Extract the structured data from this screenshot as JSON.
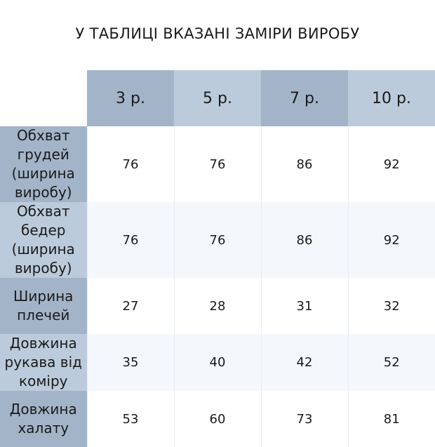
{
  "title": "У ТАБЛИЦІ ВКАЗАНІ ЗАМІРИ ВИРОБУ",
  "colors": {
    "header_dark": "#a3b4c9",
    "header_light": "#bccbdb",
    "row_alt": "#f4f8fc"
  },
  "columns": [
    "3 р.",
    "5 р.",
    "7 р.",
    "10 р."
  ],
  "rows": [
    {
      "label": "Обхват грудей (ширина виробу)",
      "values": [
        "76",
        "76",
        "86",
        "92"
      ]
    },
    {
      "label": "Обхват бедер (ширина виробу)",
      "values": [
        "76",
        "76",
        "86",
        "92"
      ]
    },
    {
      "label": "Ширина плечей",
      "values": [
        "27",
        "28",
        "31",
        "32"
      ]
    },
    {
      "label": "Довжина рукава від коміру",
      "values": [
        "35",
        "40",
        "42",
        "52"
      ]
    },
    {
      "label": "Довжина халату",
      "values": [
        "53",
        "60",
        "73",
        "81"
      ]
    }
  ]
}
